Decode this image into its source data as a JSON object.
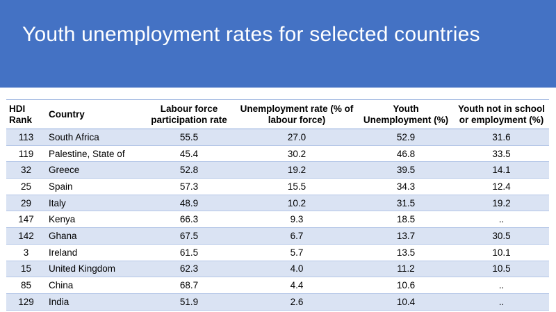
{
  "slide": {
    "title": "Youth unemployment rates for selected countries"
  },
  "table": {
    "headers": {
      "rank": "HDI Rank",
      "country": "Country",
      "labour": "Labour force participation rate",
      "unemp": "Unemployment rate (% of labour force)",
      "youth": "Youth Unemployment (%)",
      "neet": "Youth not in school or employment (%)"
    },
    "rows": [
      {
        "rank": "113",
        "country": "South Africa",
        "labour": "55.5",
        "unemp": "27.0",
        "youth": "52.9",
        "neet": "31.6"
      },
      {
        "rank": "119",
        "country": "Palestine, State of",
        "labour": "45.4",
        "unemp": "30.2",
        "youth": "46.8",
        "neet": "33.5"
      },
      {
        "rank": "32",
        "country": "Greece",
        "labour": "52.8",
        "unemp": "19.2",
        "youth": "39.5",
        "neet": "14.1"
      },
      {
        "rank": "25",
        "country": "Spain",
        "labour": "57.3",
        "unemp": "15.5",
        "youth": "34.3",
        "neet": "12.4"
      },
      {
        "rank": "29",
        "country": "Italy",
        "labour": "48.9",
        "unemp": "10.2",
        "youth": "31.5",
        "neet": "19.2"
      },
      {
        "rank": "147",
        "country": "Kenya",
        "labour": "66.3",
        "unemp": "9.3",
        "youth": "18.5",
        "neet": ".."
      },
      {
        "rank": "142",
        "country": "Ghana",
        "labour": "67.5",
        "unemp": "6.7",
        "youth": "13.7",
        "neet": "30.5"
      },
      {
        "rank": "3",
        "country": "Ireland",
        "labour": "61.5",
        "unemp": "5.7",
        "youth": "13.5",
        "neet": "10.1"
      },
      {
        "rank": "15",
        "country": "United Kingdom",
        "labour": "62.3",
        "unemp": "4.0",
        "youth": "11.2",
        "neet": "10.5"
      },
      {
        "rank": "85",
        "country": "China",
        "labour": "68.7",
        "unemp": "4.4",
        "youth": "10.6",
        "neet": ".."
      },
      {
        "rank": "129",
        "country": "India",
        "labour": "51.9",
        "unemp": "2.6",
        "youth": "10.4",
        "neet": ".."
      }
    ]
  },
  "colors": {
    "banner": "#4472c4",
    "row_band": "#dae3f3",
    "rule": "#8eaadb"
  }
}
